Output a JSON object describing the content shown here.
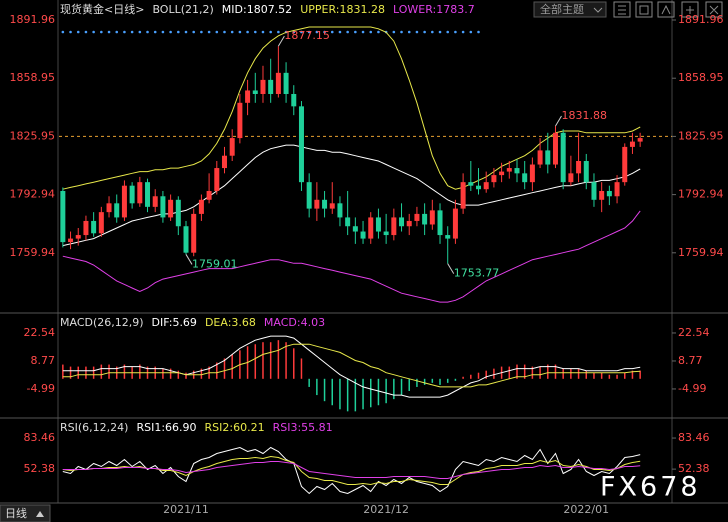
{
  "chart_data": [
    {
      "type": "candlestick",
      "title": "现货黄金<日线>",
      "indicator": "BOLL(21,2)",
      "categories": [
        null,
        null,
        null,
        null,
        null,
        null,
        null,
        null,
        null,
        null,
        null,
        null,
        null,
        null,
        null,
        null,
        "2021/11",
        null,
        null,
        null,
        null,
        null,
        null,
        null,
        null,
        null,
        null,
        null,
        null,
        null,
        null,
        null,
        null,
        null,
        null,
        null,
        null,
        null,
        null,
        null,
        null,
        null,
        "2021/12",
        null,
        null,
        null,
        null,
        null,
        null,
        null,
        null,
        null,
        null,
        null,
        null,
        null,
        null,
        null,
        null,
        null,
        null,
        null,
        null,
        null,
        null,
        null,
        null,
        null,
        "2022/01",
        null,
        null,
        null,
        null,
        null,
        null,
        null
      ],
      "open": [
        1795,
        1766,
        1768,
        1770,
        1778,
        1771,
        1783,
        1788,
        1780,
        1798,
        1788,
        1800,
        1786,
        1792,
        1780,
        1790,
        1775,
        1760,
        1782,
        1790,
        1795,
        1808,
        1815,
        1825,
        1845,
        1852,
        1850,
        1858,
        1850,
        1862,
        1850,
        1843,
        1800,
        1785,
        1790,
        1785,
        1788,
        1780,
        1775,
        1772,
        1768,
        1780,
        1772,
        1770,
        1780,
        1775,
        1778,
        1782,
        1776,
        1784,
        1770,
        1768,
        1785,
        1800,
        1798,
        1796,
        1800,
        1804,
        1806,
        1808,
        1805,
        1800,
        1810,
        1818,
        1810,
        1828,
        1800,
        1805,
        1812,
        1800,
        1790,
        1795,
        1792,
        1800,
        1820,
        1823
      ],
      "high": [
        1797,
        1772,
        1774,
        1781,
        1783,
        1786,
        1792,
        1793,
        1801,
        1800,
        1803,
        1802,
        1796,
        1795,
        1793,
        1792,
        1778,
        1785,
        1793,
        1805,
        1812,
        1820,
        1830,
        1850,
        1858,
        1862,
        1866,
        1870,
        1877.15,
        1868,
        1855,
        1846,
        1805,
        1800,
        1795,
        1800,
        1792,
        1795,
        1780,
        1778,
        1783,
        1785,
        1782,
        1785,
        1788,
        1782,
        1786,
        1788,
        1790,
        1788,
        1775,
        1790,
        1805,
        1812,
        1808,
        1806,
        1808,
        1811,
        1812,
        1813,
        1812,
        1814,
        1825,
        1828,
        1831.88,
        1830,
        1815,
        1828,
        1816,
        1805,
        1800,
        1798,
        1804,
        1822,
        1828,
        1828
      ],
      "low": [
        1763,
        1762,
        1764,
        1767,
        1769,
        1769,
        1780,
        1777,
        1778,
        1785,
        1786,
        1783,
        1783,
        1777,
        1778,
        1770,
        1759.01,
        1758,
        1778,
        1788,
        1793,
        1805,
        1812,
        1822,
        1838,
        1845,
        1845,
        1845,
        1848,
        1845,
        1838,
        1795,
        1780,
        1778,
        1780,
        1782,
        1775,
        1770,
        1765,
        1765,
        1765,
        1768,
        1765,
        1767,
        1772,
        1770,
        1775,
        1770,
        1773,
        1765,
        1753.77,
        1765,
        1782,
        1795,
        1793,
        1794,
        1797,
        1800,
        1802,
        1800,
        1796,
        1795,
        1808,
        1805,
        1808,
        1796,
        1798,
        1800,
        1796,
        1786,
        1783,
        1787,
        1788,
        1798,
        1816,
        1820
      ],
      "close": [
        1766,
        1768,
        1770,
        1778,
        1771,
        1783,
        1788,
        1780,
        1798,
        1788,
        1800,
        1786,
        1792,
        1780,
        1790,
        1775,
        1760,
        1782,
        1790,
        1795,
        1808,
        1815,
        1825,
        1845,
        1852,
        1850,
        1858,
        1850,
        1862,
        1850,
        1843,
        1800,
        1785,
        1790,
        1785,
        1788,
        1780,
        1775,
        1772,
        1768,
        1780,
        1772,
        1770,
        1780,
        1775,
        1778,
        1782,
        1776,
        1784,
        1770,
        1768,
        1785,
        1800,
        1798,
        1796,
        1800,
        1804,
        1806,
        1808,
        1805,
        1800,
        1810,
        1818,
        1810,
        1828,
        1800,
        1805,
        1812,
        1800,
        1790,
        1795,
        1792,
        1800,
        1820,
        1823,
        1825
      ],
      "up_color": "#ff3b3b",
      "down_color": "#1fd09a",
      "series": [
        {
          "name": "MID:1807.52",
          "color": "#ffffff",
          "values": [
            1764,
            1765,
            1766,
            1767,
            1768,
            1770,
            1772,
            1774,
            1776,
            1778,
            1779,
            1780,
            1781,
            1782,
            1782,
            1783,
            1784,
            1786,
            1789,
            1792,
            1795,
            1798,
            1802,
            1806,
            1810,
            1814,
            1817,
            1819,
            1820,
            1821,
            1821,
            1820,
            1819,
            1818,
            1818,
            1817,
            1817,
            1816,
            1815,
            1814,
            1813,
            1812,
            1810,
            1808,
            1806,
            1804,
            1802,
            1799,
            1796,
            1793,
            1790,
            1788,
            1787,
            1787,
            1787,
            1788,
            1789,
            1790,
            1791,
            1792,
            1793,
            1794,
            1795,
            1796,
            1797,
            1798,
            1798,
            1799,
            1800,
            1800,
            1801,
            1801,
            1802,
            1803,
            1805,
            1807.52
          ]
        },
        {
          "name": "UPPER:1831.28",
          "color": "#e8e84a",
          "values": [
            1796,
            1797,
            1798,
            1799,
            1800,
            1801,
            1802,
            1803,
            1804,
            1805,
            1806,
            1806,
            1807,
            1807,
            1808,
            1808,
            1809,
            1810,
            1812,
            1816,
            1822,
            1830,
            1840,
            1852,
            1862,
            1870,
            1876,
            1880,
            1883,
            1885,
            1886,
            1887,
            1888,
            1888,
            1888,
            1888,
            1888,
            1888,
            1888,
            1888,
            1888,
            1887,
            1885,
            1880,
            1870,
            1858,
            1845,
            1830,
            1815,
            1805,
            1798,
            1796,
            1797,
            1799,
            1801,
            1803,
            1806,
            1809,
            1811,
            1813,
            1815,
            1818,
            1822,
            1825,
            1828,
            1829,
            1829,
            1829,
            1828,
            1828,
            1828,
            1828,
            1828,
            1828,
            1829,
            1831.28
          ]
        },
        {
          "name": "LOWER:1783.7",
          "color": "#e040e8",
          "values": [
            1758,
            1757,
            1756,
            1755,
            1753,
            1750,
            1747,
            1744,
            1742,
            1740,
            1738,
            1740,
            1743,
            1745,
            1746,
            1747,
            1748,
            1749,
            1750,
            1751,
            1751,
            1751,
            1751,
            1752,
            1753,
            1754,
            1755,
            1756,
            1756,
            1755,
            1754,
            1754,
            1753,
            1752,
            1751,
            1750,
            1749,
            1748,
            1747,
            1746,
            1745,
            1743,
            1741,
            1739,
            1737,
            1736,
            1735,
            1734,
            1733,
            1732,
            1732,
            1733,
            1735,
            1738,
            1741,
            1744,
            1746,
            1748,
            1750,
            1752,
            1754,
            1756,
            1757,
            1758,
            1759,
            1760,
            1761,
            1762,
            1764,
            1766,
            1768,
            1770,
            1772,
            1774,
            1778,
            1783.7
          ]
        }
      ],
      "annotations": [
        1877.15,
        1759.01,
        1753.77,
        1831.88
      ],
      "price_line": 1825.95,
      "ylim": [
        1727.5,
        1896.5
      ],
      "yticks": [
        1891.96,
        1858.95,
        1825.95,
        1792.94,
        1759.94
      ],
      "tick_color": "#ff4a4a"
    },
    {
      "type": "macd",
      "title": "MACD(26,12,9)",
      "values": [
        7,
        6,
        6,
        6,
        6,
        7,
        7,
        6,
        7,
        6,
        7,
        6,
        6,
        5,
        5,
        4,
        3,
        4,
        5,
        6,
        8,
        10,
        12,
        14,
        16,
        17,
        18,
        18,
        19,
        18,
        15,
        10,
        -4,
        -8,
        -11,
        -13,
        -15,
        -16,
        -16,
        -15,
        -14,
        -13,
        -12,
        -10,
        -8,
        -6,
        -4,
        -3,
        -2,
        -3,
        -2,
        -1,
        1,
        2,
        3,
        4,
        5,
        6,
        6,
        7,
        7,
        6,
        6,
        7,
        7,
        5,
        5,
        5,
        4,
        3,
        3,
        2,
        2,
        3,
        4,
        4.03
      ],
      "up_color": "#ff3b3b",
      "down_color": "#1fd09a",
      "series": [
        {
          "name": "DIF:5.69",
          "color": "#ffffff",
          "values": [
            4,
            4,
            4,
            4,
            4,
            5,
            5,
            5,
            6,
            6,
            6,
            5,
            5,
            5,
            4,
            3,
            2,
            3,
            4,
            5,
            7,
            9,
            12,
            15,
            17,
            19,
            20,
            21,
            21,
            21,
            20,
            17,
            14,
            11,
            8,
            5,
            2,
            0,
            -2,
            -4,
            -5,
            -6,
            -7,
            -8,
            -8,
            -9,
            -9,
            -9,
            -9,
            -9,
            -8,
            -6,
            -4,
            -2,
            -1,
            1,
            2,
            3,
            4,
            5,
            5,
            5,
            6,
            6,
            6,
            5,
            5,
            5,
            4,
            4,
            4,
            4,
            4,
            5,
            5,
            5.69
          ]
        },
        {
          "name": "DEA:3.68",
          "color": "#e8e84a",
          "values": [
            1,
            1,
            2,
            2,
            2,
            2,
            3,
            3,
            3,
            3,
            3,
            3,
            3,
            3,
            3,
            3,
            2,
            2,
            2,
            3,
            3,
            4,
            5,
            7,
            8,
            10,
            12,
            13,
            14,
            16,
            17,
            17,
            17,
            16,
            15,
            14,
            13,
            11,
            9,
            8,
            6,
            5,
            3,
            2,
            1,
            0,
            -1,
            -2,
            -3,
            -4,
            -4,
            -4,
            -4,
            -4,
            -3,
            -3,
            -2,
            -1,
            0,
            1,
            1,
            2,
            2,
            3,
            3,
            3,
            3,
            3,
            3,
            3,
            3,
            3,
            3,
            3,
            3.5,
            3.68
          ]
        }
      ],
      "legend_extra": "MACD:4.03",
      "legend_extra_color": "#e040e8",
      "ylim": [
        -17.8,
        29.9
      ],
      "yticks": [
        22.54,
        8.77,
        -4.99
      ],
      "tick_color": "#ff4a4a"
    },
    {
      "type": "line",
      "title": "RSI(6,12,24)",
      "series": [
        {
          "name": "RSI1:66.90",
          "color": "#ffffff",
          "values": [
            50,
            48,
            55,
            52,
            58,
            55,
            60,
            56,
            62,
            55,
            60,
            52,
            56,
            48,
            54,
            45,
            40,
            58,
            62,
            64,
            68,
            70,
            72,
            74,
            70,
            72,
            68,
            74,
            70,
            62,
            58,
            35,
            28,
            35,
            32,
            38,
            30,
            28,
            32,
            36,
            30,
            40,
            36,
            42,
            38,
            44,
            40,
            38,
            36,
            30,
            35,
            52,
            60,
            58,
            56,
            62,
            60,
            64,
            62,
            60,
            66,
            62,
            72,
            58,
            68,
            48,
            52,
            62,
            50,
            46,
            50,
            48,
            55,
            64,
            65,
            66.9
          ]
        },
        {
          "name": "RSI2:60.21",
          "color": "#e8e84a",
          "values": [
            52,
            51,
            52,
            52,
            53,
            53,
            54,
            54,
            55,
            54,
            55,
            53,
            53,
            51,
            51,
            49,
            46,
            50,
            53,
            55,
            58,
            60,
            62,
            63,
            63,
            64,
            63,
            65,
            64,
            61,
            59,
            50,
            44,
            43,
            41,
            41,
            39,
            37,
            37,
            38,
            37,
            39,
            38,
            40,
            40,
            42,
            41,
            40,
            39,
            37,
            37,
            42,
            47,
            49,
            50,
            53,
            54,
            56,
            56,
            56,
            58,
            58,
            61,
            59,
            61,
            56,
            55,
            57,
            55,
            52,
            52,
            51,
            53,
            57,
            59,
            60.21
          ]
        },
        {
          "name": "RSI3:55.81",
          "color": "#e040e8",
          "values": [
            52,
            52,
            52,
            52,
            53,
            53,
            53,
            53,
            54,
            54,
            54,
            53,
            53,
            52,
            52,
            51,
            49,
            50,
            51,
            52,
            54,
            55,
            56,
            57,
            58,
            59,
            59,
            60,
            60,
            59,
            58,
            54,
            50,
            49,
            48,
            47,
            46,
            45,
            44,
            44,
            44,
            44,
            44,
            45,
            45,
            45,
            45,
            45,
            44,
            43,
            43,
            45,
            47,
            48,
            49,
            50,
            51,
            52,
            52,
            53,
            54,
            54,
            56,
            55,
            56,
            54,
            54,
            55,
            54,
            53,
            53,
            52,
            53,
            55,
            55,
            55.81
          ]
        }
      ],
      "ylim": [
        16.5,
        96.5
      ],
      "yticks": [
        83.46,
        52.38
      ],
      "tick_color": "#ff4a4a"
    }
  ],
  "ui": {
    "theme_button": "全部主题",
    "period_tab": "日线",
    "watermark": "FX678"
  }
}
